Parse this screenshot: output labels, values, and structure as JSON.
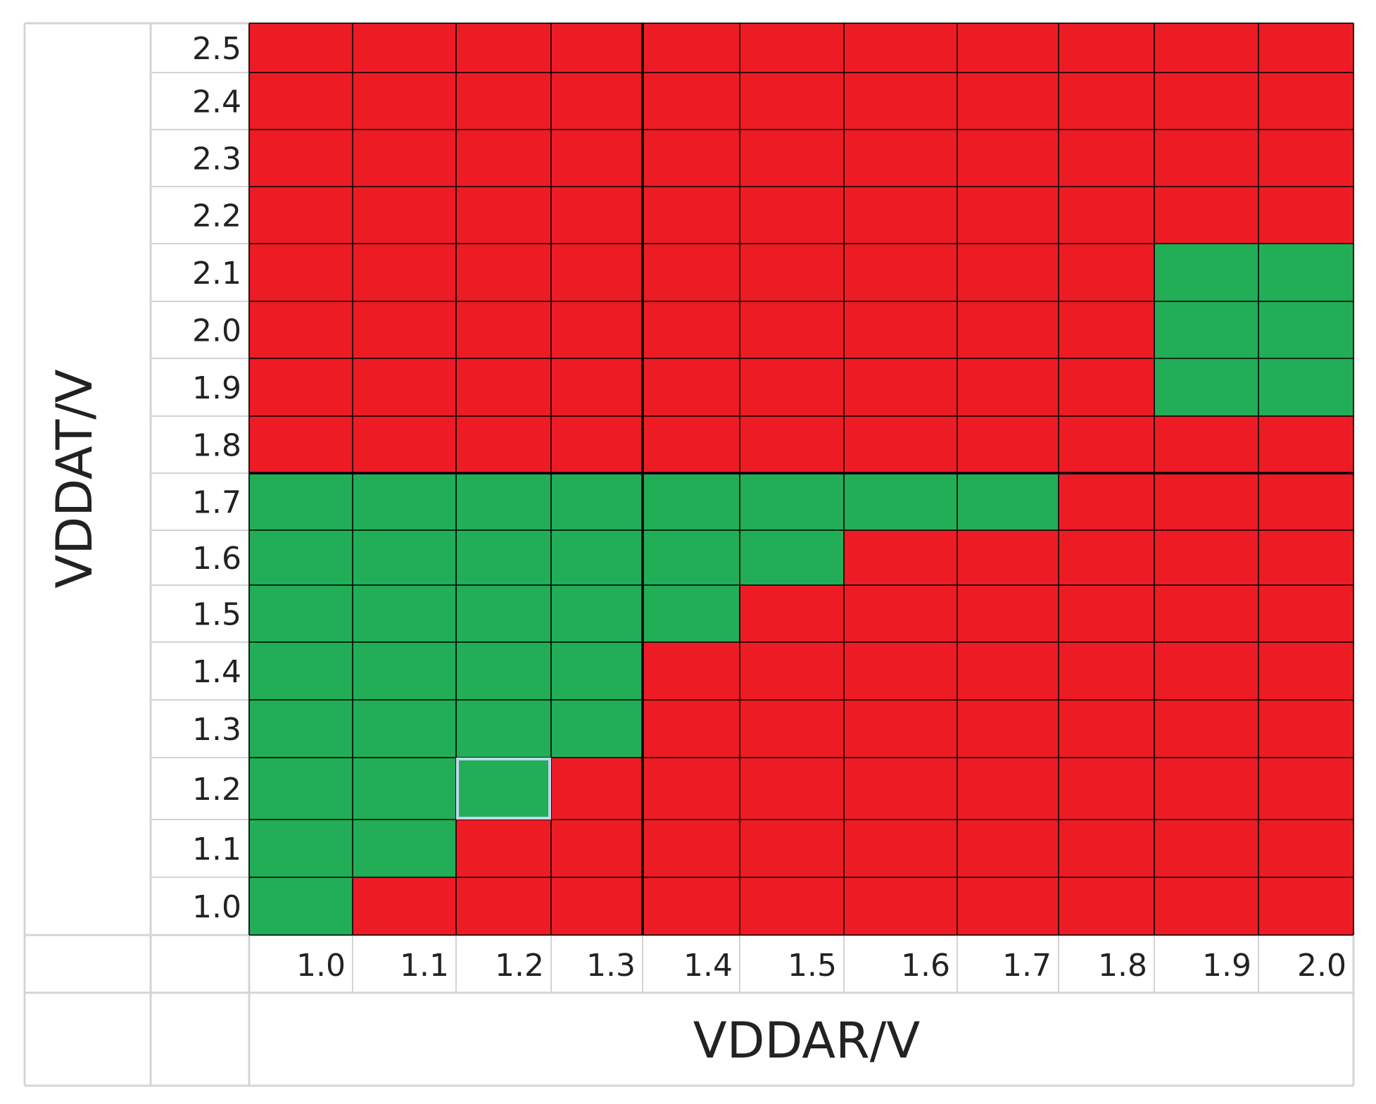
{
  "chart_data": {
    "type": "heatmap",
    "title": "",
    "xlabel": "VDDAR/V",
    "ylabel": "VDDAT/V",
    "x": [
      "1.0",
      "1.1",
      "1.2",
      "1.3",
      "1.4",
      "1.5",
      "1.6",
      "1.7",
      "1.8",
      "1.9",
      "2.0"
    ],
    "y": [
      "1.0",
      "1.1",
      "1.2",
      "1.3",
      "1.4",
      "1.5",
      "1.6",
      "1.7",
      "1.8",
      "1.9",
      "2.0",
      "2.1",
      "2.2",
      "2.3",
      "2.4",
      "2.5"
    ],
    "values": [
      [
        1,
        0,
        0,
        0,
        0,
        0,
        0,
        0,
        0,
        0,
        0
      ],
      [
        1,
        1,
        0,
        0,
        0,
        0,
        0,
        0,
        0,
        0,
        0
      ],
      [
        1,
        1,
        1,
        0,
        0,
        0,
        0,
        0,
        0,
        0,
        0
      ],
      [
        1,
        1,
        1,
        1,
        0,
        0,
        0,
        0,
        0,
        0,
        0
      ],
      [
        1,
        1,
        1,
        1,
        0,
        0,
        0,
        0,
        0,
        0,
        0
      ],
      [
        1,
        1,
        1,
        1,
        1,
        0,
        0,
        0,
        0,
        0,
        0
      ],
      [
        1,
        1,
        1,
        1,
        1,
        1,
        0,
        0,
        0,
        0,
        0
      ],
      [
        1,
        1,
        1,
        1,
        1,
        1,
        1,
        1,
        0,
        0,
        0
      ],
      [
        0,
        0,
        0,
        0,
        0,
        0,
        0,
        0,
        0,
        0,
        0
      ],
      [
        0,
        0,
        0,
        0,
        0,
        0,
        0,
        0,
        0,
        1,
        1
      ],
      [
        0,
        0,
        0,
        0,
        0,
        0,
        0,
        0,
        0,
        1,
        1
      ],
      [
        0,
        0,
        0,
        0,
        0,
        0,
        0,
        0,
        0,
        1,
        1
      ],
      [
        0,
        0,
        0,
        0,
        0,
        0,
        0,
        0,
        0,
        0,
        0
      ],
      [
        0,
        0,
        0,
        0,
        0,
        0,
        0,
        0,
        0,
        0,
        0
      ],
      [
        0,
        0,
        0,
        0,
        0,
        0,
        0,
        0,
        0,
        0,
        0
      ],
      [
        0,
        0,
        0,
        0,
        0,
        0,
        0,
        0,
        0,
        0,
        0
      ]
    ],
    "selected_cell": {
      "x": "1.2",
      "y": "1.2"
    },
    "colors": {
      "pass": "#22AE57",
      "fail": "#ED1C24",
      "grid": "#000000",
      "sheet_line": "#D4D4D4",
      "selection": "#BDD7EE"
    }
  }
}
